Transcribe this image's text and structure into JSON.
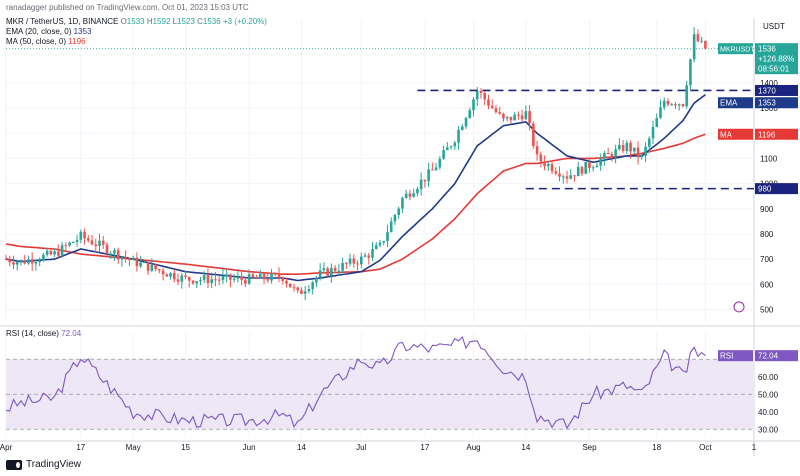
{
  "top_bar": {
    "publisher": "ranadagger published on TradingView.com, Oct 01, 2023 15:03 UTC"
  },
  "legend": {
    "symbol": "MKR / TetherUS, 1D, BINANCE",
    "o_label": "O",
    "o": "1533",
    "h_label": "H",
    "h": "1592",
    "l_label": "L",
    "l": "1523",
    "c_label": "C",
    "c": "1536",
    "change": "+3 (+0.20%)",
    "ema_label": "EMA (20, close, 0)",
    "ema_value": "1353",
    "ma_label": "MA (50, close, 0)",
    "ma_value": "1196",
    "rsi_label": "RSI (14, close)",
    "rsi_value": "72.04"
  },
  "currency": "USDT",
  "price_axis_ticks": [
    "1400",
    "1300",
    "1200",
    "1100",
    "1000",
    "900",
    "800",
    "700",
    "600",
    "500"
  ],
  "rsi_axis_ticks": [
    "60.00",
    "50.00",
    "40.00",
    "30.00"
  ],
  "time_axis_ticks": [
    "Apr",
    "17",
    "May",
    "15",
    "Jun",
    "14",
    "Jul",
    "17",
    "Aug",
    "14",
    "Sep",
    "18",
    "Oct",
    "1"
  ],
  "labels": {
    "mkrusdt": "MKRUSDT",
    "price_tag": "1536",
    "price_change": "+126.88%",
    "countdown": "08:56:01",
    "level_1370": "1370",
    "level_980": "980",
    "ema_tag": "EMA",
    "ema_tag_value": "1353",
    "ma_tag": "MA",
    "ma_tag_value": "1196",
    "rsi_tag": "RSI",
    "rsi_tag_value": "72.04"
  },
  "logo_text": "TradingView",
  "colors": {
    "up": "#26a69a",
    "down": "#ef5350",
    "ema": "#1e3a8a",
    "ma": "#e53935",
    "rsi_line": "#7e57c2",
    "rsi_band": "#ede7f6",
    "level_line": "#1a237e"
  },
  "chart_data": {
    "type": "candlestick",
    "symbol": "MKR/USDT",
    "interval": "1D",
    "price_range": [
      450,
      1650
    ],
    "rsi_range": [
      25,
      85
    ],
    "horizontal_levels": [
      1370,
      980
    ],
    "rsi_levels": [
      70,
      30
    ],
    "anchors": {
      "dates": [
        "2023-03-28",
        "2023-04-01",
        "2023-04-10",
        "2023-04-17",
        "2023-05-01",
        "2023-05-15",
        "2023-06-01",
        "2023-06-10",
        "2023-06-14",
        "2023-06-20",
        "2023-07-01",
        "2023-07-06",
        "2023-07-12",
        "2023-07-20",
        "2023-07-26",
        "2023-08-01",
        "2023-08-08",
        "2023-08-14",
        "2023-08-17",
        "2023-08-25",
        "2023-09-01",
        "2023-09-10",
        "2023-09-14",
        "2023-09-20",
        "2023-09-25",
        "2023-09-28",
        "2023-10-01"
      ],
      "close": [
        700,
        690,
        720,
        790,
        690,
        620,
        620,
        630,
        560,
        640,
        700,
        750,
        940,
        1050,
        1180,
        1370,
        1250,
        1280,
        1100,
        1030,
        1080,
        1150,
        1100,
        1330,
        1320,
        1580,
        1536
      ],
      "ema20": [
        700,
        690,
        700,
        740,
        700,
        650,
        625,
        625,
        615,
        625,
        650,
        695,
        790,
        900,
        1000,
        1150,
        1230,
        1245,
        1200,
        1110,
        1085,
        1110,
        1110,
        1180,
        1250,
        1320,
        1353
      ],
      "ma50": [
        760,
        750,
        740,
        720,
        700,
        680,
        650,
        640,
        640,
        645,
        650,
        660,
        700,
        780,
        860,
        960,
        1050,
        1080,
        1080,
        1100,
        1100,
        1110,
        1120,
        1140,
        1160,
        1180,
        1196
      ],
      "rsi": [
        42,
        45,
        48,
        72,
        40,
        35,
        35,
        38,
        32,
        50,
        70,
        65,
        78,
        76,
        78,
        82,
        65,
        60,
        38,
        32,
        50,
        55,
        50,
        72,
        60,
        75,
        72
      ]
    },
    "last_price": 1536,
    "ema20_last": 1353,
    "ma50_last": 1196,
    "rsi_last": 72.04
  }
}
